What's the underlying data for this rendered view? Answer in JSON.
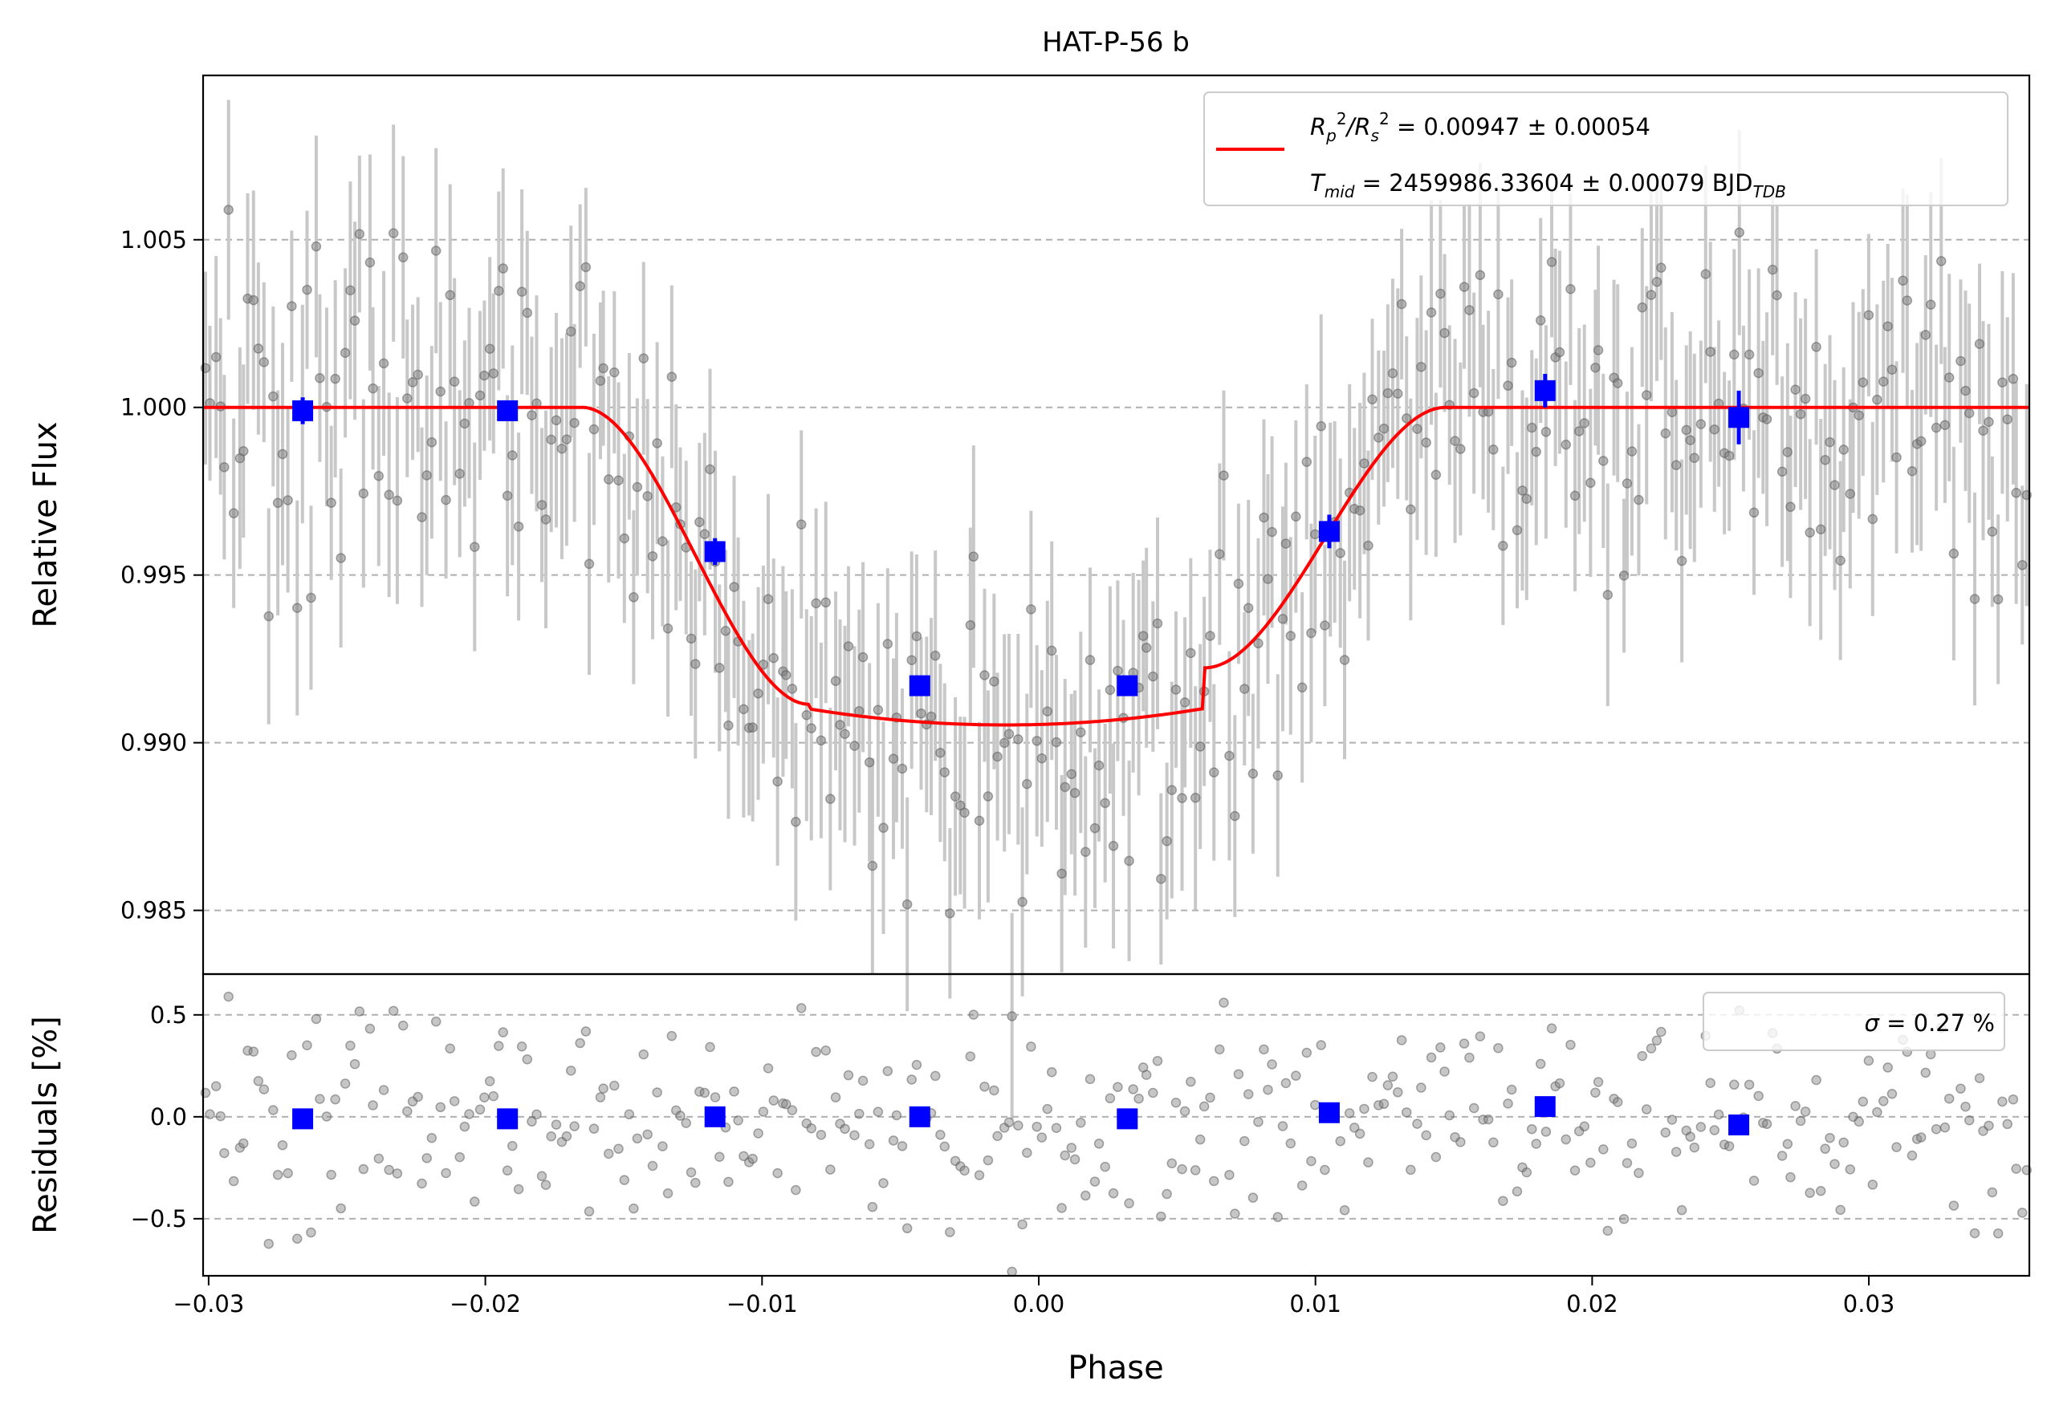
{
  "chart_data": [
    {
      "type": "scatter",
      "panel": "main",
      "title": "HAT-P-56 b",
      "xlabel": "",
      "ylabel": "Relative Flux",
      "xlim": [
        -0.0302,
        0.0358
      ],
      "ylim": [
        0.9831,
        1.0099
      ],
      "yticks": [
        0.985,
        0.99,
        0.995,
        1.0,
        1.005
      ],
      "ytick_labels": [
        "0.985",
        "0.990",
        "0.995",
        "1.000",
        "1.005"
      ],
      "grid": "horizontal dashed",
      "legend_position": "top-right",
      "legend": {
        "line1_parts": [
          "R",
          "p",
          "2",
          "/R",
          "s",
          "2",
          " = 0.00947 ± 0.00054"
        ],
        "line2_parts": [
          "T",
          "mid",
          " = 2459986.33604 ± 0.00079 BJD",
          "TDB"
        ]
      },
      "model": {
        "name": "transit model",
        "color": "#ff0000",
        "depth": 0.00947,
        "baseline": 1.0,
        "t1": -0.0165,
        "t2": -0.0083,
        "t3": 0.006,
        "t4": 0.0147,
        "center": -0.0012
      },
      "binned": {
        "color": "#0000ff",
        "x": [
          -0.0266,
          -0.0192,
          -0.0117,
          -0.0043,
          0.0032,
          0.0105,
          0.0183,
          0.0253
        ],
        "y": [
          0.9999,
          0.9999,
          0.9957,
          0.9917,
          0.9917,
          0.9963,
          1.0005,
          0.9997
        ],
        "err": [
          0.0004,
          0.0003,
          0.0004,
          0.0003,
          0.0003,
          0.0005,
          0.0005,
          0.0008
        ]
      },
      "points": {
        "color": "#808080",
        "error_color": "#c8c8c8",
        "n": 380,
        "x_range": [
          -0.0302,
          0.0358
        ],
        "typical_err": 0.0028,
        "scatter_sigma": 0.0027
      }
    },
    {
      "type": "scatter",
      "panel": "residuals",
      "xlabel": "Phase",
      "ylabel": "Residuals [%]",
      "xlim": [
        -0.0302,
        0.0358
      ],
      "ylim": [
        -0.78,
        0.7
      ],
      "xticks": [
        -0.03,
        -0.02,
        -0.01,
        0.0,
        0.01,
        0.02,
        0.03
      ],
      "xtick_labels": [
        "−0.03",
        "−0.02",
        "−0.01",
        "0.00",
        "0.01",
        "0.02",
        "0.03"
      ],
      "yticks": [
        -0.5,
        0.0,
        0.5
      ],
      "ytick_labels": [
        "−0.5",
        "0.0",
        "0.5"
      ],
      "grid": "horizontal dashed",
      "legend_position": "top-right",
      "legend_text_parts": [
        "σ",
        " = 0.27 %"
      ],
      "binned": {
        "color": "#0000ff",
        "x": [
          -0.0266,
          -0.0192,
          -0.0117,
          -0.0043,
          0.0032,
          0.0105,
          0.0183,
          0.0253
        ],
        "y": [
          -0.01,
          -0.01,
          0.0,
          0.0,
          -0.01,
          0.02,
          0.05,
          -0.04
        ]
      },
      "points": {
        "color": "#808080",
        "sigma": 0.27
      }
    }
  ]
}
